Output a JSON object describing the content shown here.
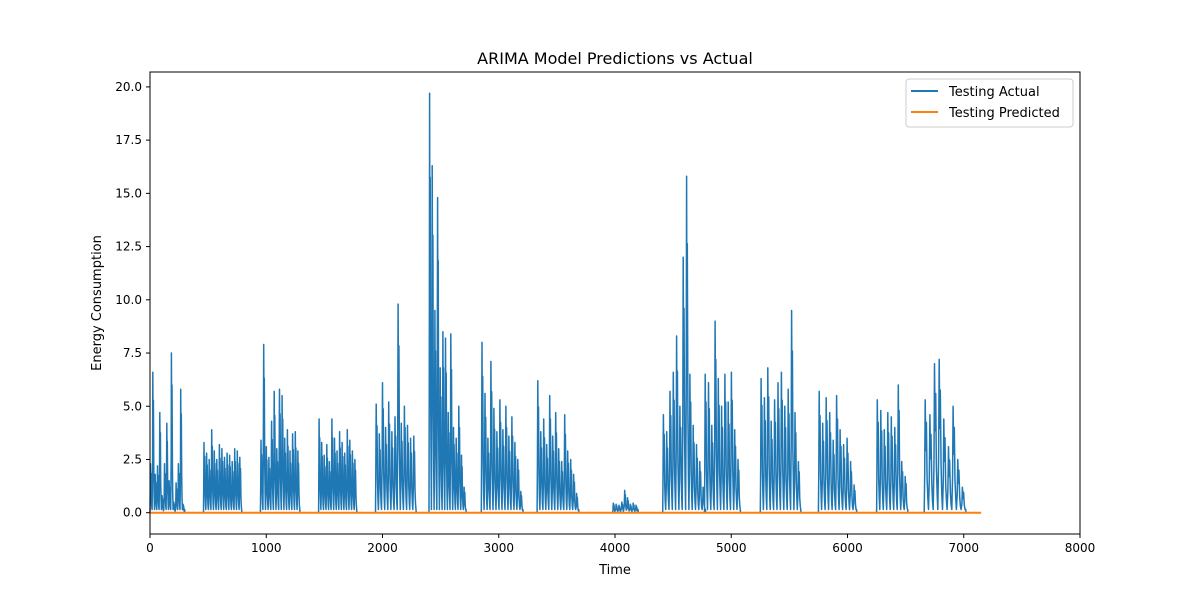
{
  "chart_data": {
    "type": "line",
    "title": "ARIMA Model Predictions vs Actual",
    "xlabel": "Time",
    "ylabel": "Energy Consumption",
    "xlim": [
      0,
      8000
    ],
    "ylim": [
      -1.0,
      20.7
    ],
    "xticks": [
      0,
      1000,
      2000,
      3000,
      4000,
      5000,
      6000,
      7000,
      8000
    ],
    "yticks": [
      0.0,
      2.5,
      5.0,
      7.5,
      10.0,
      12.5,
      15.0,
      17.5,
      20.0
    ],
    "xtick_labels": [
      "0",
      "1000",
      "2000",
      "3000",
      "4000",
      "5000",
      "6000",
      "7000",
      "8000"
    ],
    "ytick_labels": [
      "0.0",
      "2.5",
      "5.0",
      "7.5",
      "10.0",
      "12.5",
      "15.0",
      "17.5",
      "20.0"
    ],
    "grid": false,
    "legend_position": "top-right",
    "series": [
      {
        "name": "Testing Actual",
        "color": "#1f77b4",
        "bursts": [
          {
            "start": 0,
            "end": 300,
            "peaks": [
              2.3,
              6.6,
              1.8,
              2.2,
              4.7,
              0.8,
              2.3,
              4.2,
              1.5,
              7.5,
              0.5,
              1.4,
              2.3,
              5.8,
              0.4
            ]
          },
          {
            "start": 460,
            "end": 790,
            "peaks": [
              3.3,
              2.8,
              2.5,
              3.9,
              2.9,
              2.5,
              3.2,
              3.0,
              2.6,
              2.8,
              2.7,
              2.4,
              3.0,
              2.9,
              2.6
            ]
          },
          {
            "start": 950,
            "end": 1290,
            "peaks": [
              3.4,
              7.9,
              3.1,
              2.6,
              4.3,
              5.7,
              3.0,
              5.8,
              5.5,
              3.5,
              3.9,
              2.9,
              3.7,
              3.8,
              2.9
            ]
          },
          {
            "start": 1450,
            "end": 1780,
            "peaks": [
              4.4,
              3.3,
              2.7,
              3.2,
              2.4,
              4.4,
              3.5,
              2.9,
              3.8,
              3.3,
              2.8,
              3.9,
              3.4,
              2.9,
              2.5
            ]
          },
          {
            "start": 1940,
            "end": 2290,
            "peaks": [
              5.1,
              3.7,
              6.1,
              4.0,
              5.2,
              3.8,
              4.5,
              9.8,
              4.2,
              5.0,
              4.1,
              3.5,
              3.6
            ]
          },
          {
            "start": 2400,
            "end": 2720,
            "peaks": [
              19.7,
              16.3,
              9.5,
              14.8,
              6.8,
              8.5,
              8.2,
              4.7,
              8.4,
              4.0,
              3.5,
              5.0,
              2.7,
              1.2
            ]
          },
          {
            "start": 2850,
            "end": 3210,
            "peaks": [
              8.0,
              5.6,
              3.5,
              7.1,
              4.9,
              3.8,
              5.3,
              3.9,
              5.0,
              3.6,
              4.5,
              3.3,
              2.5,
              1.0
            ]
          },
          {
            "start": 3330,
            "end": 3690,
            "peaks": [
              6.2,
              3.8,
              4.4,
              3.2,
              5.5,
              3.6,
              4.7,
              3.0,
              2.4,
              4.6,
              2.9,
              2.5,
              1.8,
              0.9
            ]
          },
          {
            "start": 3980,
            "end": 4200,
            "peaks": [
              0.45,
              0.4,
              0.35,
              0.5,
              1.05,
              0.7,
              0.4,
              0.45,
              0.35
            ]
          },
          {
            "start": 4410,
            "end": 4780,
            "peaks": [
              4.6,
              3.8,
              5.7,
              6.6,
              8.3,
              5.0,
              12.0,
              15.8,
              6.5,
              4.1,
              3.2,
              2.4,
              1.2
            ]
          },
          {
            "start": 4770,
            "end": 5080,
            "peaks": [
              6.5,
              6.1,
              4.1,
              9.0,
              6.3,
              5.0,
              6.5,
              5.2,
              6.6,
              3.9,
              2.5
            ]
          },
          {
            "start": 5250,
            "end": 5600,
            "peaks": [
              6.3,
              5.4,
              6.8,
              4.3,
              5.3,
              6.1,
              6.6,
              5.0,
              5.8,
              9.5,
              4.7,
              2.4
            ]
          },
          {
            "start": 5750,
            "end": 6080,
            "peaks": [
              5.7,
              4.2,
              5.4,
              4.7,
              3.4,
              5.5,
              3.9,
              3.2,
              3.5,
              2.4,
              1.3
            ]
          },
          {
            "start": 6250,
            "end": 6520,
            "peaks": [
              5.3,
              4.8,
              3.9,
              4.7,
              4.5,
              4.0,
              6.0,
              2.4,
              1.7
            ]
          },
          {
            "start": 6660,
            "end": 7020,
            "peaks": [
              5.3,
              4.6,
              7.0,
              7.2,
              4.4,
              3.1,
              5.0,
              2.5,
              1.2
            ]
          }
        ]
      },
      {
        "name": "Testing Predicted",
        "color": "#ff7f0e",
        "x": [
          0,
          7150
        ],
        "values": [
          0,
          0
        ]
      }
    ]
  }
}
